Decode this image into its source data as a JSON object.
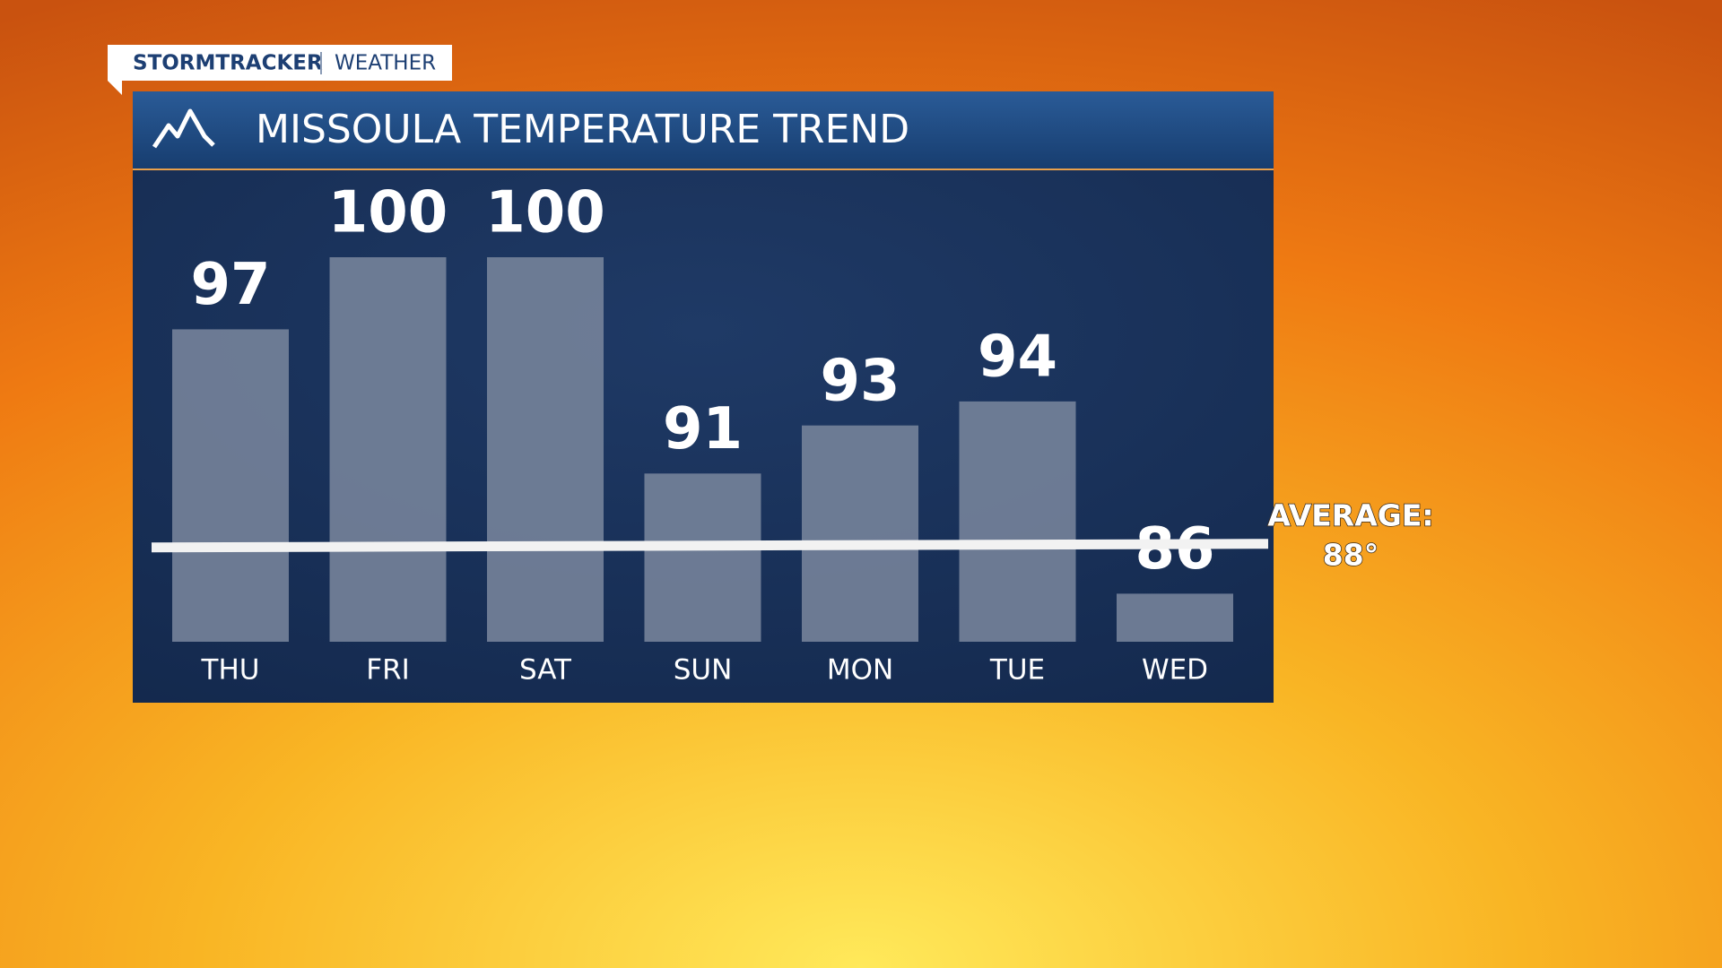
{
  "branding": {
    "brand": "STORMTRACKER",
    "section": "WEATHER"
  },
  "chart_data": {
    "type": "bar",
    "title": "MISSOULA TEMPERATURE TREND",
    "categories": [
      "THU",
      "FRI",
      "SAT",
      "SUN",
      "MON",
      "TUE",
      "WED"
    ],
    "values": [
      97,
      100,
      100,
      91,
      93,
      94,
      86
    ],
    "color": "#75839a",
    "ylim": [
      84,
      100
    ],
    "average": {
      "label": "AVERAGE:",
      "value": 88,
      "value_label": "88°"
    }
  }
}
